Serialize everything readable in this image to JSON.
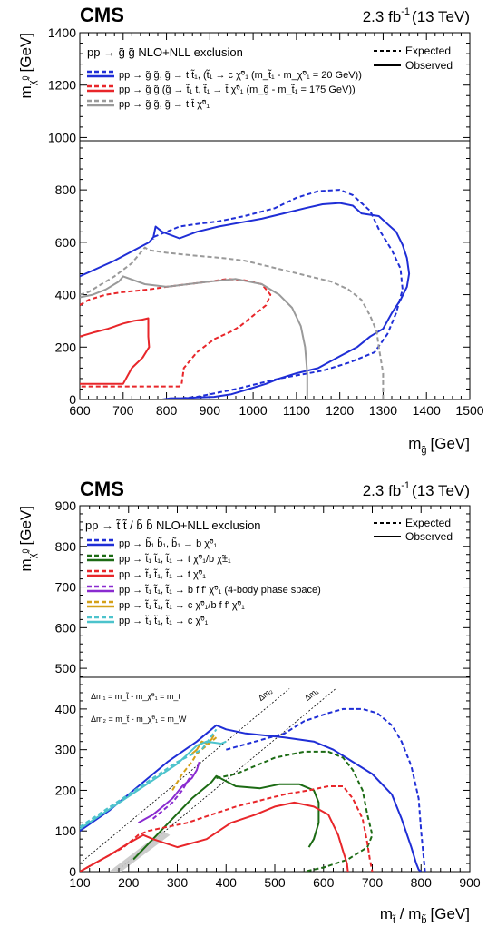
{
  "chart_data": [
    {
      "type": "line",
      "header_left": "CMS",
      "lumi_value": "2.3 fb",
      "lumi_exp": "-1",
      "lumi_energy": "(13 TeV)",
      "xlabel": "m",
      "xlabel_sub": "g̃",
      "xlabel_unit": "[GeV]",
      "ylabel": "m",
      "ylabel_sub": "χ̃",
      "ylabel_sub2": "1",
      "ylabel_sup": "0",
      "ylabel_unit": "[GeV]",
      "xlim": [
        600,
        1500
      ],
      "ylim": [
        0,
        1400
      ],
      "plot_ylim": [
        0,
        1000
      ],
      "xticks": [
        "600",
        "700",
        "800",
        "900",
        "1000",
        "1100",
        "1200",
        "1300",
        "1400",
        "1500"
      ],
      "yticks": [
        "0",
        "200",
        "400",
        "600",
        "800",
        "1000",
        "1200",
        "1400"
      ],
      "legend": {
        "title": "pp → g̃ g̃  NLO+NLL exclusion",
        "expected": "Expected",
        "observed": "Observed",
        "entries": [
          {
            "label": "pp → g̃ g̃, g̃ → t t̃₁, (t̃₁ → c χ̃⁰₁ (m_t̃₁ - m_χ̃⁰₁ = 20 GeV))",
            "color": "#1f2ed6"
          },
          {
            "label": "pp → g̃ g̃  (g̃ → t̃₁ t,  t̃₁ → t̄ χ̃⁰₁ (m_g̃ - m_t̃₁ = 175 GeV))",
            "color": "#e8262a"
          },
          {
            "label": "pp → g̃ g̃, g̃ → t t̄ χ̃⁰₁",
            "color": "#9a9a9a"
          }
        ]
      },
      "series": [
        {
          "color": "#1f2ed6",
          "style": "dashed",
          "x": [
            802,
            870,
            960,
            1060,
            1160,
            1220,
            1280,
            1310,
            1330,
            1345,
            1340,
            1320,
            1290,
            1270,
            1230,
            1200,
            1150,
            1100,
            1050,
            980,
            920,
            870,
            830,
            800,
            770,
            770
          ],
          "y": [
            0,
            10,
            40,
            80,
            110,
            140,
            180,
            250,
            330,
            420,
            500,
            570,
            650,
            720,
            780,
            800,
            795,
            770,
            730,
            700,
            680,
            670,
            660,
            640,
            620,
            610
          ]
        },
        {
          "color": "#1f2ed6",
          "style": "solid",
          "x": [
            600,
            680,
            760,
            770,
            775,
            790,
            830,
            870,
            920,
            970,
            1020,
            1070,
            1120,
            1160,
            1200,
            1230,
            1250,
            1290,
            1310,
            1330,
            1345,
            1355,
            1360,
            1355,
            1340,
            1320,
            1300,
            1270,
            1240,
            1200,
            1150,
            1100,
            1060,
            1030,
            990,
            950,
            910,
            870,
            840,
            810,
            790,
            780
          ],
          "y": [
            470,
            530,
            600,
            620,
            660,
            640,
            615,
            640,
            660,
            675,
            690,
            710,
            730,
            745,
            750,
            740,
            710,
            700,
            670,
            640,
            590,
            540,
            480,
            430,
            380,
            330,
            270,
            240,
            200,
            165,
            120,
            100,
            80,
            60,
            40,
            20,
            10,
            8,
            5,
            5,
            0,
            0
          ]
        },
        {
          "color": "#e8262a",
          "style": "dashed",
          "x": [
            600,
            620,
            660,
            700,
            760,
            800,
            850,
            900,
            940,
            980,
            1020,
            1040,
            1030,
            1000,
            970,
            950,
            910,
            870,
            840,
            835,
            830,
            600
          ],
          "y": [
            360,
            380,
            400,
            410,
            420,
            430,
            440,
            450,
            460,
            455,
            440,
            400,
            360,
            320,
            280,
            260,
            230,
            180,
            120,
            60,
            50,
            50
          ]
        },
        {
          "color": "#e8262a",
          "style": "solid",
          "x": [
            600,
            630,
            665,
            700,
            725,
            745,
            758,
            758,
            758,
            758,
            760,
            745,
            720,
            700,
            600
          ],
          "y": [
            240,
            255,
            270,
            290,
            300,
            305,
            310,
            300,
            280,
            240,
            200,
            160,
            120,
            60,
            60
          ]
        },
        {
          "color": "#9a9a9a",
          "style": "dashed",
          "x": [
            600,
            620,
            650,
            680,
            720,
            740,
            750,
            760,
            800,
            860,
            930,
            980,
            1030,
            1080,
            1130,
            1180,
            1220,
            1250,
            1270,
            1285,
            1290,
            1300,
            1300
          ],
          "y": [
            400,
            410,
            440,
            470,
            520,
            560,
            580,
            570,
            560,
            550,
            540,
            530,
            510,
            490,
            470,
            450,
            420,
            380,
            320,
            260,
            200,
            100,
            0
          ]
        },
        {
          "color": "#9a9a9a",
          "style": "solid",
          "x": [
            600,
            630,
            660,
            690,
            700,
            750,
            800,
            850,
            900,
            960,
            1020,
            1060,
            1090,
            1110,
            1120,
            1125,
            1125
          ],
          "y": [
            390,
            400,
            420,
            450,
            470,
            440,
            430,
            440,
            450,
            460,
            440,
            400,
            350,
            280,
            200,
            100,
            0
          ]
        }
      ]
    },
    {
      "type": "line",
      "header_left": "CMS",
      "lumi_value": "2.3 fb",
      "lumi_exp": "-1",
      "lumi_energy": "(13 TeV)",
      "xlabel": "m",
      "xlabel_sub": "t̃",
      "xlabel_mid": " / m",
      "xlabel_sub2": "b̃",
      "xlabel_unit": "[GeV]",
      "ylabel": "m",
      "ylabel_sub": "χ̃",
      "ylabel_sub2": "1",
      "ylabel_sup": "0",
      "ylabel_unit": "[GeV]",
      "xlim": [
        100,
        900
      ],
      "ylim": [
        0,
        900
      ],
      "plot_ylim": [
        0,
        450
      ],
      "xticks": [
        "100",
        "200",
        "300",
        "400",
        "500",
        "600",
        "700",
        "800",
        "900"
      ],
      "yticks": [
        "0",
        "100",
        "200",
        "300",
        "400",
        "500",
        "600",
        "700",
        "800",
        "900"
      ],
      "legend": {
        "title": "pp → t̃ t̃ / b̃ b̃  NLO+NLL exclusion",
        "expected": "Expected",
        "observed": "Observed",
        "entries": [
          {
            "label": "pp → b̃₁ b̃₁, b̃₁ → b χ̃⁰₁",
            "color": "#1f2ed6"
          },
          {
            "label": "pp → t̃₁ t̃₁, t̃₁ → t χ̃⁰₁/b χ̃±₁",
            "color": "#1c6b14"
          },
          {
            "label": "pp → t̃₁ t̃₁, t̃₁ → t χ̃⁰₁",
            "color": "#e8262a"
          },
          {
            "label": "pp → t̃₁ t̃₁, t̃₁ → b f f' χ̃⁰₁  (4-body phase space)",
            "color": "#8a2bd0"
          },
          {
            "label": "pp → t̃₁ t̃₁, t̃₁ → c χ̃⁰₁/b f f' χ̃⁰₁",
            "color": "#d4a017"
          },
          {
            "label": "pp → t̃₁ t̃₁, t̃₁ → c χ̃⁰₁",
            "color": "#4cc3cc"
          }
        ]
      },
      "annotations": {
        "dm1_def": "Δm₁ = m_t̃ - m_χ̃⁰₁ = m_t",
        "dm2_def": "Δm₂ = m_t̃ - m_χ̃⁰₁ = m_W",
        "dm1_tag": "Δm₁",
        "dm2_tag": "Δm₂"
      },
      "series": [
        {
          "color": "#1f2ed6",
          "style": "dashed",
          "x": [
            400,
            460,
            520,
            560,
            610,
            640,
            680,
            710,
            740,
            760,
            780,
            795,
            800,
            805,
            808
          ],
          "y": [
            300,
            320,
            340,
            370,
            390,
            400,
            400,
            390,
            360,
            320,
            260,
            180,
            100,
            40,
            0
          ]
        },
        {
          "color": "#1f2ed6",
          "style": "solid",
          "x": [
            100,
            160,
            220,
            280,
            340,
            380,
            400,
            440,
            520,
            580,
            620,
            660,
            700,
            740,
            760,
            780,
            790,
            795,
            800
          ],
          "y": [
            100,
            150,
            210,
            270,
            320,
            360,
            350,
            340,
            330,
            320,
            300,
            270,
            240,
            190,
            130,
            60,
            20,
            5,
            0
          ]
        },
        {
          "color": "#1c6b14",
          "style": "dashed",
          "x": [
            380,
            420,
            460,
            500,
            560,
            610,
            640,
            660,
            680,
            690,
            700,
            690,
            650,
            600,
            560
          ],
          "y": [
            230,
            240,
            260,
            280,
            295,
            295,
            280,
            250,
            200,
            140,
            90,
            60,
            30,
            10,
            0
          ]
        },
        {
          "color": "#1c6b14",
          "style": "solid",
          "x": [
            210,
            250,
            290,
            330,
            370,
            380,
            420,
            470,
            510,
            550,
            580,
            590,
            590,
            580,
            570
          ],
          "y": [
            30,
            80,
            130,
            180,
            220,
            235,
            210,
            205,
            215,
            215,
            200,
            170,
            120,
            80,
            60
          ]
        },
        {
          "color": "#e8262a",
          "style": "dashed",
          "x": [
            100,
            130,
            160,
            190,
            220,
            240,
            280,
            320,
            370,
            420,
            470,
            520,
            570,
            610,
            640,
            660,
            680,
            690,
            695,
            700
          ],
          "y": [
            0,
            20,
            40,
            60,
            90,
            100,
            110,
            120,
            140,
            160,
            175,
            190,
            200,
            210,
            210,
            180,
            130,
            70,
            30,
            0
          ]
        },
        {
          "color": "#e8262a",
          "style": "solid",
          "x": [
            100,
            130,
            160,
            200,
            230,
            250,
            300,
            360,
            410,
            460,
            500,
            540,
            580,
            610,
            630,
            640,
            648,
            650
          ],
          "y": [
            0,
            20,
            40,
            70,
            90,
            80,
            60,
            80,
            120,
            140,
            160,
            170,
            160,
            140,
            90,
            50,
            20,
            0
          ]
        },
        {
          "color": "#8a2bd0",
          "style": "dashed",
          "x": [
            250,
            270,
            290,
            310,
            330
          ],
          "y": [
            130,
            150,
            170,
            200,
            240
          ]
        },
        {
          "color": "#8a2bd0",
          "style": "solid",
          "x": [
            220,
            250,
            270,
            290,
            310,
            330,
            340,
            345
          ],
          "y": [
            120,
            140,
            160,
            180,
            210,
            230,
            250,
            270
          ]
        },
        {
          "color": "#d4a017",
          "style": "dashed",
          "x": [
            290,
            310,
            330,
            340,
            350,
            360,
            380
          ],
          "y": [
            200,
            240,
            270,
            290,
            300,
            310,
            330
          ]
        },
        {
          "color": "#d4a017",
          "style": "solid",
          "x": [
            330,
            340,
            345,
            350,
            360,
            370,
            375
          ],
          "y": [
            290,
            300,
            310,
            320,
            315,
            325,
            335
          ]
        },
        {
          "color": "#4cc3cc",
          "style": "dashed",
          "x": [
            100,
            150,
            200,
            250,
            300,
            350,
            380
          ],
          "y": [
            110,
            150,
            190,
            230,
            270,
            300,
            350
          ]
        },
        {
          "color": "#4cc3cc",
          "style": "solid",
          "x": [
            100,
            150,
            200,
            250,
            300,
            340,
            360,
            390,
            400
          ],
          "y": [
            105,
            145,
            185,
            225,
            265,
            310,
            320,
            315,
            320
          ]
        }
      ]
    }
  ]
}
